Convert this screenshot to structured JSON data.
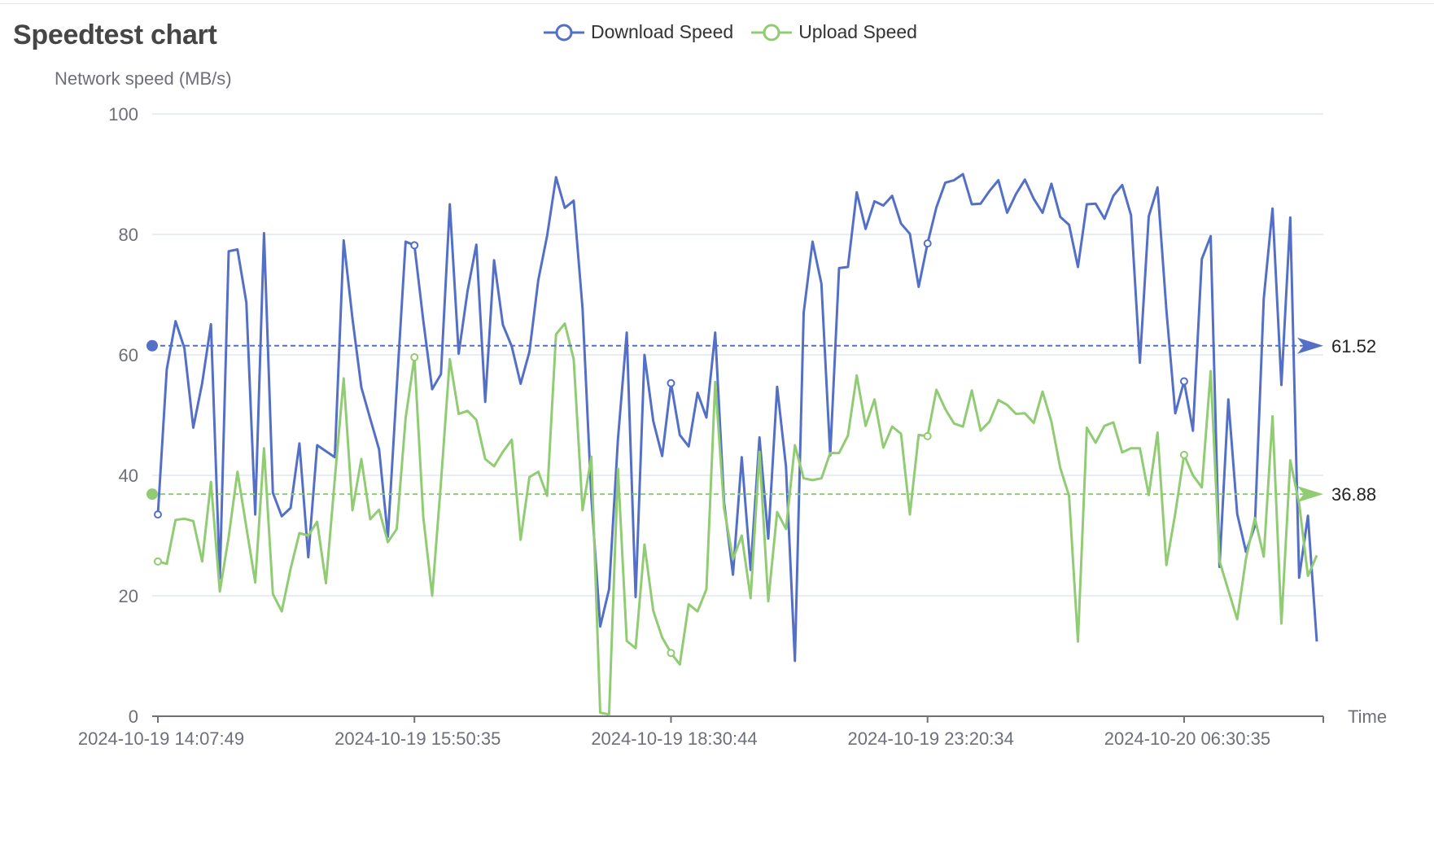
{
  "chart_data": {
    "type": "line",
    "title": "Speedtest chart",
    "ylabel": "Network speed (MB/s)",
    "xlabel": "Time",
    "ylim": [
      0,
      100
    ],
    "yticks": [
      0,
      20,
      40,
      60,
      80,
      100
    ],
    "grid": true,
    "legend_position": "top-center",
    "x_tick_labels": [
      {
        "index": 0,
        "label": "2024-10-19 14:07:49"
      },
      {
        "index": 29,
        "label": "2024-10-19 15:50:35"
      },
      {
        "index": 58,
        "label": "2024-10-19 18:30:44"
      },
      {
        "index": 87,
        "label": "2024-10-19 23:20:34"
      },
      {
        "index": 116,
        "label": "2024-10-20 06:30:35"
      }
    ],
    "series": [
      {
        "name": "Download Speed",
        "color": "#5470c6",
        "average": 61.52,
        "values": [
          33.5,
          57.6,
          65.6,
          61.1,
          47.9,
          55.3,
          65.1,
          22.9,
          77.2,
          77.5,
          68.7,
          33.5,
          80.2,
          37.1,
          33.2,
          34.6,
          45.3,
          26.4,
          45.0,
          44.0,
          43.0,
          79.0,
          66.0,
          54.6,
          49.4,
          44.3,
          29.8,
          54.6,
          78.8,
          78.2,
          65.7,
          54.3,
          56.8,
          85.0,
          60.2,
          70.6,
          78.3,
          52.2,
          75.7,
          65.0,
          61.4,
          55.2,
          60.5,
          72.4,
          79.8,
          89.5,
          84.4,
          85.6,
          67.7,
          36.4,
          14.9,
          21.1,
          46.0,
          63.7,
          19.8,
          60.0,
          49.0,
          43.2,
          55.3,
          46.7,
          44.8,
          53.7,
          49.6,
          63.7,
          35.5,
          23.5,
          43.0,
          24.3,
          46.3,
          29.5,
          54.7,
          41.4,
          9.2,
          67.0,
          78.8,
          71.8,
          43.3,
          74.4,
          74.6,
          87.0,
          80.9,
          85.5,
          84.8,
          86.4,
          81.8,
          80.1,
          71.3,
          78.5,
          84.5,
          88.6,
          89.0,
          90.0,
          85.0,
          85.1,
          87.2,
          89.0,
          83.6,
          86.7,
          89.1,
          85.9,
          83.6,
          88.4,
          82.9,
          81.6,
          74.6,
          85.0,
          85.1,
          82.6,
          86.4,
          88.2,
          83.2,
          58.7,
          83.0,
          87.8,
          67.4,
          50.3,
          55.6,
          47.4,
          75.9,
          79.7,
          24.8,
          52.6,
          33.6,
          27.3,
          31.6,
          69.3,
          84.3,
          55.0,
          82.8,
          23.0,
          33.3,
          12.4
        ]
      },
      {
        "name": "Upload Speed",
        "color": "#91cc75",
        "average": 36.88,
        "values": [
          25.7,
          25.3,
          32.6,
          32.8,
          32.4,
          25.7,
          38.9,
          20.7,
          29.8,
          40.6,
          31.4,
          22.2,
          44.5,
          20.3,
          17.4,
          24.5,
          30.4,
          30.0,
          32.3,
          22.1,
          39.4,
          56.1,
          34.2,
          42.7,
          32.7,
          34.3,
          28.9,
          31.1,
          49.5,
          59.6,
          33.1,
          20.0,
          38.8,
          59.3,
          50.2,
          50.7,
          49.2,
          42.7,
          41.5,
          43.9,
          45.9,
          29.3,
          39.7,
          40.6,
          36.6,
          63.4,
          65.2,
          59.3,
          34.2,
          43.1,
          0.6,
          0.3,
          41.1,
          12.5,
          11.3,
          28.5,
          17.5,
          13.1,
          10.5,
          8.6,
          18.6,
          17.4,
          21.1,
          55.5,
          34.5,
          26.1,
          30.0,
          19.6,
          43.9,
          19.1,
          33.9,
          31.1,
          45.0,
          39.5,
          39.2,
          39.5,
          43.7,
          43.7,
          46.6,
          56.6,
          48.2,
          52.6,
          44.6,
          48.1,
          46.9,
          33.5,
          46.7,
          46.5,
          54.2,
          51.0,
          48.6,
          48.1,
          54.1,
          47.4,
          48.9,
          52.5,
          51.7,
          50.2,
          50.3,
          48.7,
          53.9,
          48.9,
          41.2,
          36.6,
          12.4,
          47.9,
          45.4,
          48.2,
          48.8,
          43.8,
          44.5,
          44.5,
          36.7,
          47.1,
          25.1,
          33.7,
          43.4,
          40.0,
          38.0,
          57.3,
          25.8,
          20.9,
          16.1,
          26.2,
          32.9,
          26.5,
          49.8,
          15.4,
          42.5,
          35.3,
          23.3,
          26.7
        ]
      }
    ]
  }
}
